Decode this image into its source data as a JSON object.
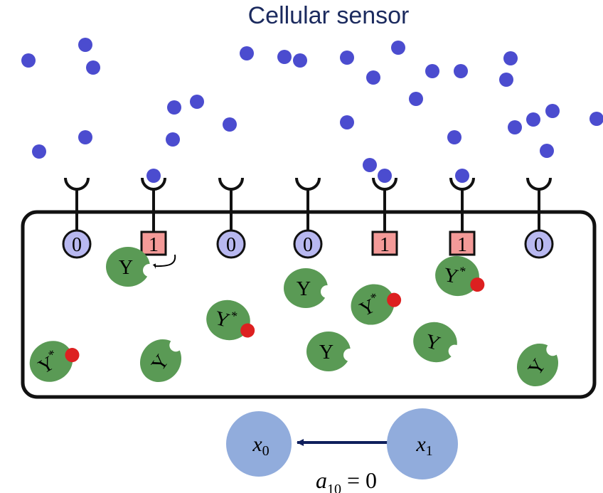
{
  "title": "Cellular sensor",
  "receptors": [
    {
      "state": "0",
      "bound": false
    },
    {
      "state": "1",
      "bound": true
    },
    {
      "state": "0",
      "bound": false
    },
    {
      "state": "0",
      "bound": false
    },
    {
      "state": "1",
      "bound": true
    },
    {
      "state": "1",
      "bound": true
    },
    {
      "state": "0",
      "bound": false
    }
  ],
  "enzymes": [
    {
      "label": "Y",
      "phospho": false
    },
    {
      "label": "Y",
      "phospho": false
    },
    {
      "label": "Y*",
      "phospho": true
    },
    {
      "label": "Y*",
      "phospho": true
    },
    {
      "label": "Y*",
      "phospho": true
    },
    {
      "label": "Y",
      "phospho": false
    },
    {
      "label": "Y",
      "phospho": false
    },
    {
      "label": "Y*",
      "phospho": true
    },
    {
      "label": "Y",
      "phospho": false
    },
    {
      "label": "Y",
      "phospho": false
    }
  ],
  "nodes": {
    "x0": "x0",
    "x1": "x1"
  },
  "edge_label": "a10 = 0",
  "colors": {
    "ligand": "#4b4ccf",
    "receptor_off": "#b8b8f0",
    "receptor_on": "#f49a98",
    "enzyme": "#5a9a55",
    "phosphate": "#dd2020",
    "node": "#91acdc",
    "arrow": "#0f1f5c",
    "title": "#1b2a5e"
  }
}
